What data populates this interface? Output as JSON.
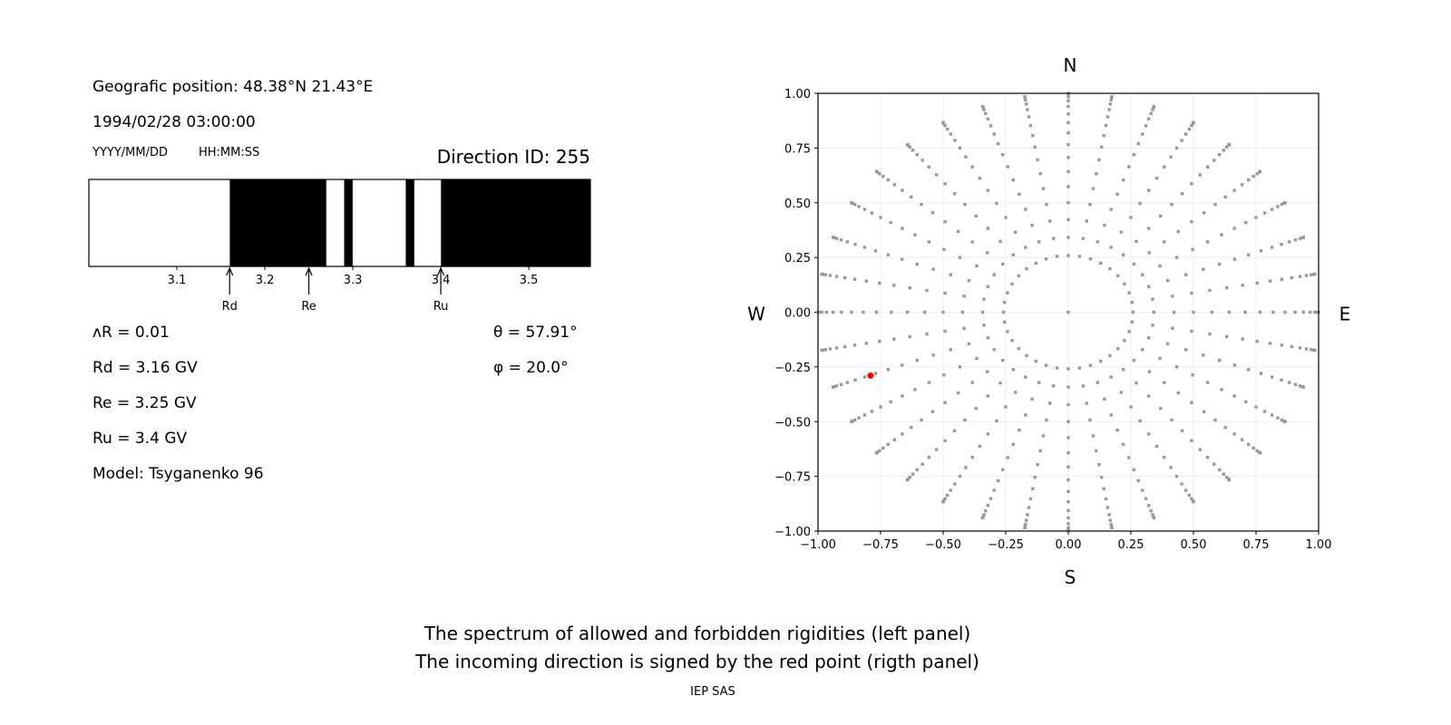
{
  "info": {
    "position": "Geografic position: 48.38°N 21.43°E",
    "datetime": "1994/02/28 03:00:00",
    "date_format": "YYYY/MM/DD",
    "time_format": "HH:MM:SS",
    "direction_id": "Direction ID: 255",
    "delta_r": "ᴧR = 0.01",
    "rd": "Rd = 3.16 GV",
    "re": "Re = 3.25 GV",
    "ru": "Ru = 3.4 GV",
    "model": "Model: Tsyganenko 96",
    "theta": "θ = 57.91°",
    "phi": "φ = 20.0°"
  },
  "caption": {
    "line1": "The spectrum of allowed and forbidden rigidities (left panel)",
    "line2": "The incoming direction is signed by the red point (rigth panel)",
    "credit": "IEP SAS"
  },
  "chart_data": [
    {
      "type": "bar",
      "name": "rigidity-spectrum",
      "xlim": [
        3.0,
        3.57
      ],
      "xticks": [
        3.1,
        3.2,
        3.3,
        3.4,
        3.5
      ],
      "xtick_labels": [
        "3.1",
        "3.2",
        "3.3",
        "3.4",
        "3.5"
      ],
      "forbidden_bands": [
        [
          3.16,
          3.27
        ],
        [
          3.29,
          3.3
        ],
        [
          3.36,
          3.37
        ],
        [
          3.4,
          3.57
        ]
      ],
      "colors": {
        "forbidden": "#000000",
        "allowed": "#ffffff"
      },
      "markers": [
        {
          "label": "Rd",
          "value": 3.16
        },
        {
          "label": "Re",
          "value": 3.25
        },
        {
          "label": "Ru",
          "value": 3.4
        }
      ]
    },
    {
      "type": "scatter",
      "name": "directions",
      "xlim": [
        -1,
        1
      ],
      "ylim": [
        -1,
        1
      ],
      "xticks": [
        "−1.00",
        "−0.75",
        "−0.50",
        "−0.25",
        "0.00",
        "0.25",
        "0.50",
        "0.75",
        "1.00"
      ],
      "yticks": [
        "−1.00",
        "−0.75",
        "−0.50",
        "−0.25",
        "0.00",
        "0.25",
        "0.50",
        "0.75",
        "1.00"
      ],
      "grid": true,
      "compass": {
        "north": "N",
        "south": "S",
        "west": "W",
        "east": "E"
      },
      "zenith_angles_deg": [
        15,
        20,
        25,
        30,
        35,
        40,
        45,
        50,
        55,
        60,
        65,
        70,
        75,
        80,
        85,
        88,
        90
      ],
      "azimuth_step_deg": 10,
      "center_point": true,
      "point_color": "#999999",
      "highlight": {
        "x": -0.79,
        "y": -0.29,
        "color": "#ff0000"
      }
    }
  ]
}
